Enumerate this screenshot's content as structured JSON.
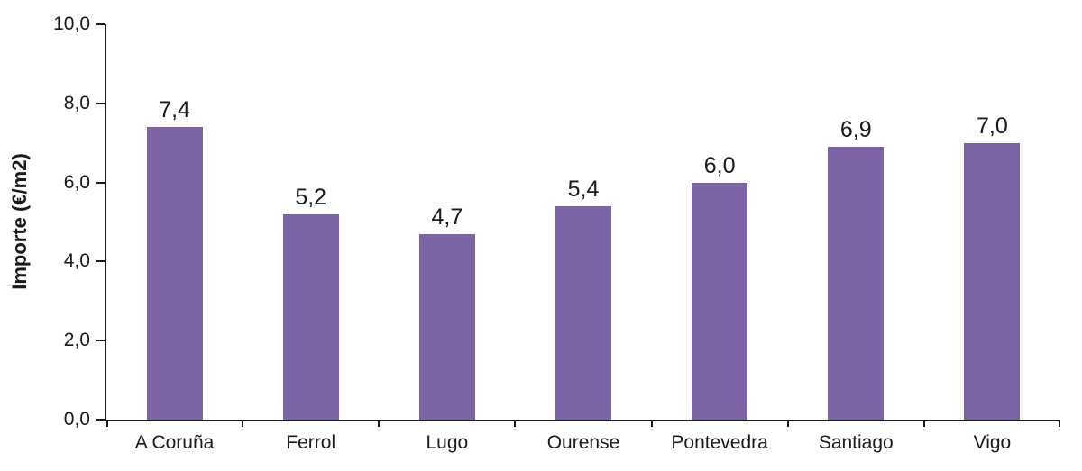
{
  "chart_data": {
    "type": "bar",
    "title": "",
    "categories": [
      "A Coruña",
      "Ferrol",
      "Lugo",
      "Ourense",
      "Pontevedra",
      "Santiago",
      "Vigo"
    ],
    "values": [
      7.4,
      5.2,
      4.7,
      5.4,
      6.0,
      6.9,
      7.0
    ],
    "value_labels": [
      "7,4",
      "5,2",
      "4,7",
      "5,4",
      "6,0",
      "6,9",
      "7,0"
    ],
    "xlabel": "",
    "ylabel": "Importe (€/m2)",
    "ylim": [
      0,
      10
    ],
    "y_ticks": [
      {
        "value": 0,
        "label": "0,0"
      },
      {
        "value": 2,
        "label": "2,0"
      },
      {
        "value": 4,
        "label": "4,0"
      },
      {
        "value": 6,
        "label": "6,0"
      },
      {
        "value": 8,
        "label": "8,0"
      },
      {
        "value": 10,
        "label": "10,0"
      }
    ],
    "grid": false,
    "legend": "none",
    "bar_color": "#7D64A5",
    "axis_color": "#1A1A1A",
    "text_color": "#1A1A1A",
    "background": "#FFFFFF"
  }
}
